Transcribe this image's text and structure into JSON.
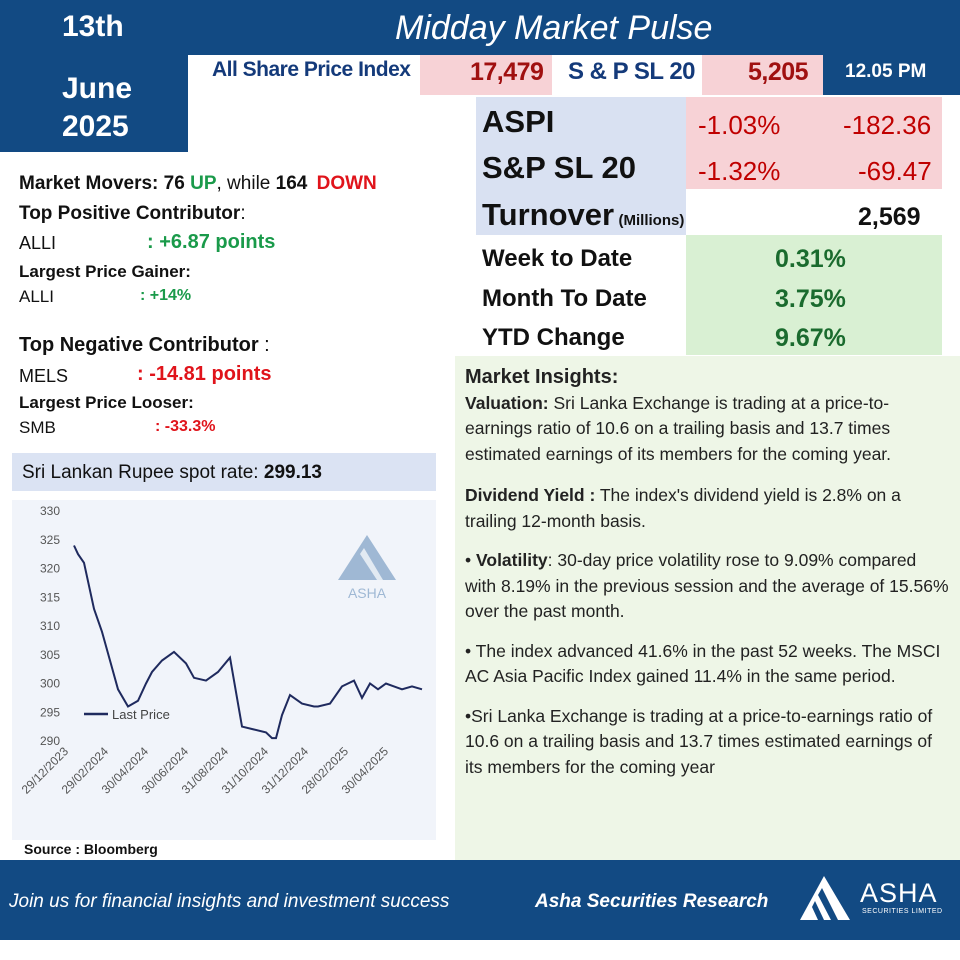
{
  "header": {
    "date_day": "13th",
    "date_month": "June",
    "date_year": "2025",
    "title": "Midday Market Pulse",
    "aspi_label": "All Share Price Index",
    "aspi_value": "17,479",
    "sp_label": "S & P SL 20",
    "sp_value": "5,205",
    "time": "12.05 PM"
  },
  "stats": {
    "aspi": {
      "label": "ASPI",
      "pct": "-1.03%",
      "points": "-182.36"
    },
    "sp": {
      "label": "S&P SL 20",
      "pct": "-1.32%",
      "points": "-69.47"
    },
    "turnover": {
      "label": "Turnover",
      "unit": "(Millions)",
      "value": "2,569"
    },
    "wtd": {
      "label": "Week to Date",
      "value": "0.31%"
    },
    "mtd": {
      "label": "Month To Date",
      "value": "3.75%"
    },
    "ytd": {
      "label": "YTD Change",
      "value": "9.67%"
    }
  },
  "movers": {
    "prefix": "Market Movers: ",
    "up_count": "76",
    "up_label": "UP",
    "middle": ", while ",
    "down_count": "164",
    "down_label": "DOWN"
  },
  "positive": {
    "contributor_title": "Top Positive Contributor",
    "contributor_sep": ":",
    "contributor_ticker": "ALLI",
    "contributor_value": ": +6.87 points",
    "gainer_title": "Largest Price Gainer:",
    "gainer_ticker": "ALLI",
    "gainer_value": ": +14%"
  },
  "negative": {
    "contributor_title": "Top Negative Contributor",
    "contributor_sep": " :",
    "contributor_ticker": "MELS",
    "contributor_value": ": -14.81 points",
    "looser_title": "Largest Price Looser:",
    "looser_ticker": "SMB",
    "looser_value": ": -33.3%"
  },
  "rupee": {
    "label": "Sri Lankan Rupee spot rate: ",
    "value": "299.13"
  },
  "insights": {
    "title": "Market Insights:",
    "valuation_label": "Valuation:",
    "valuation_text": " Sri Lanka Exchange is trading at a price-to-earnings ratio of 10.6 on a trailing basis and 13.7 times estimated earnings of its members for the coming year.",
    "dividend_label": "Dividend Yield :",
    "dividend_text": " The index's dividend yield is 2.8% on a trailing 12-month basis.",
    "volatility_bullet": "• ",
    "volatility_label": "Volatility",
    "volatility_text": ": 30-day price volatility rose to 9.09% compared with 8.19% in the previous session and the average of 15.56% over the past month.",
    "advance_text": "• The index advanced 41.6% in the past 52 weeks. The MSCI AC Asia Pacific Index gained 11.4% in the same period.",
    "pe_text": "•Sri Lanka Exchange is trading at a price-to-earnings ratio of 10.6 on a trailing basis and 13.7 times estimated earnings of its members for the coming year"
  },
  "source": "Source : Bloomberg",
  "footer": {
    "tagline": "Join us for financial insights and investment success",
    "research": "Asha Securities Research",
    "logo_text": "ASHA",
    "logo_sub": "SECURITIES LIMITED"
  },
  "colors": {
    "navy": "#124a83",
    "pink": "#f7d2d6",
    "lavender": "#d9e1f2",
    "green_fill": "#d9f0d3",
    "insights_bg": "#eef6e7"
  },
  "chart_data": {
    "type": "line",
    "title": "",
    "legend": "Last Price",
    "watermark": "ASHA",
    "xlabel": "",
    "ylabel": "",
    "ylim": [
      290,
      330
    ],
    "yticks": [
      290,
      295,
      300,
      305,
      310,
      315,
      320,
      325,
      330
    ],
    "xtick_labels": [
      "29/12/2023",
      "29/02/2024",
      "30/04/2024",
      "30/06/2024",
      "31/08/2024",
      "31/10/2024",
      "31/12/2024",
      "28/02/2025",
      "30/04/2025"
    ],
    "series": [
      {
        "name": "Last Price",
        "x": [
          0,
          0.1,
          0.25,
          0.5,
          0.7,
          0.9,
          1.1,
          1.35,
          1.6,
          1.8,
          1.95,
          2.2,
          2.5,
          2.8,
          3.0,
          3.3,
          3.6,
          3.9,
          4.2,
          4.5,
          4.8,
          4.95,
          5.05,
          5.2,
          5.4,
          5.7,
          6.0,
          6.1,
          6.4,
          6.7,
          7.0,
          7.2,
          7.4,
          7.6,
          7.8,
          8.0,
          8.2,
          8.45,
          8.7
        ],
        "values": [
          324,
          322.5,
          321,
          313,
          309,
          304,
          299,
          296,
          297,
          300,
          302,
          304,
          305.5,
          303.5,
          301,
          300.5,
          302,
          304.5,
          292.5,
          292,
          291.5,
          290.5,
          290.5,
          294.5,
          298,
          296.5,
          296,
          296,
          296.5,
          299.5,
          300.5,
          297.5,
          300,
          299,
          300,
          299.5,
          299,
          299.5,
          299
        ]
      }
    ]
  }
}
